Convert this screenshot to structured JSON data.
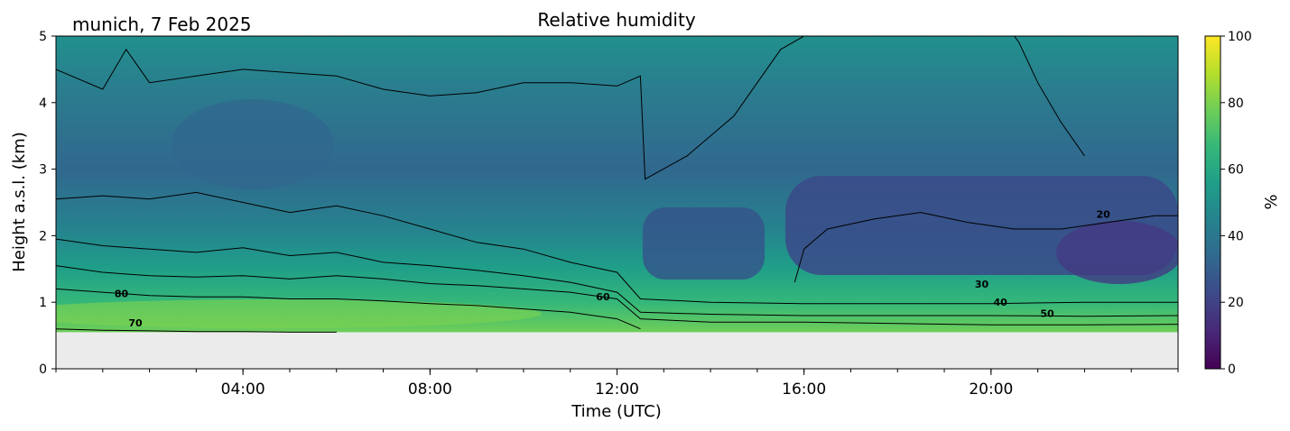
{
  "chart_data": {
    "type": "heatmap",
    "title": "Relative humidity",
    "subtitle": "munich, 7 Feb 2025",
    "xlabel": "Time (UTC)",
    "ylabel": "Height a.s.l. (km)",
    "xlim_hours": [
      0,
      24
    ],
    "ylim_km": [
      0,
      5
    ],
    "x_ticks": [
      "04:00",
      "08:00",
      "12:00",
      "16:00",
      "20:00"
    ],
    "x_tick_hours": [
      4,
      8,
      12,
      16,
      20
    ],
    "y_ticks": [
      0,
      1,
      2,
      3,
      4,
      5
    ],
    "data_floor_km": 0.55,
    "colorbar": {
      "label": "%",
      "min": 0,
      "max": 100,
      "ticks": [
        0,
        20,
        40,
        60,
        80,
        100
      ],
      "colormap": "viridis",
      "colors": [
        "#440154",
        "#482878",
        "#3e4989",
        "#31688e",
        "#26828e",
        "#1f9e89",
        "#35b779",
        "#6ece58",
        "#b5de2b",
        "#fde725"
      ]
    },
    "background_color": "#ebebeb",
    "contour_levels": [
      {
        "level": 80,
        "label": "80",
        "label_at": [
          1.4,
          1.08
        ]
      },
      {
        "level": 70,
        "label": "70",
        "label_at": [
          1.7,
          0.64
        ]
      },
      {
        "level": 60,
        "label": "60",
        "label_at": [
          11.7,
          1.03
        ]
      },
      {
        "level": 50,
        "label": "50",
        "label_at": [
          21.2,
          0.78
        ]
      },
      {
        "level": 40,
        "label": "40",
        "label_at": [
          20.2,
          0.95
        ]
      },
      {
        "level": 30,
        "label": "30",
        "label_at": [
          19.8,
          1.22
        ]
      },
      {
        "level": 20,
        "label": "20",
        "label_at": [
          22.4,
          2.27
        ]
      }
    ],
    "contours": [
      {
        "level": 70,
        "points": [
          [
            0,
            0.6
          ],
          [
            1,
            0.58
          ],
          [
            2,
            0.57
          ],
          [
            3,
            0.56
          ],
          [
            4,
            0.56
          ],
          [
            5,
            0.55
          ],
          [
            6,
            0.55
          ]
        ]
      },
      {
        "level": 60,
        "points": [
          [
            0,
            1.2
          ],
          [
            1,
            1.15
          ],
          [
            2,
            1.1
          ],
          [
            3,
            1.08
          ],
          [
            4,
            1.08
          ],
          [
            5,
            1.05
          ],
          [
            6,
            1.05
          ],
          [
            7,
            1.02
          ],
          [
            8,
            0.98
          ],
          [
            9,
            0.95
          ],
          [
            10,
            0.9
          ],
          [
            11,
            0.85
          ],
          [
            12,
            0.75
          ],
          [
            12.5,
            0.6
          ]
        ]
      },
      {
        "level": 50,
        "points": [
          [
            0,
            1.55
          ],
          [
            1,
            1.45
          ],
          [
            2,
            1.4
          ],
          [
            3,
            1.38
          ],
          [
            4,
            1.4
          ],
          [
            5,
            1.35
          ],
          [
            6,
            1.4
          ],
          [
            7,
            1.35
          ],
          [
            8,
            1.28
          ],
          [
            9,
            1.25
          ],
          [
            10,
            1.2
          ],
          [
            11,
            1.15
          ],
          [
            12,
            1.05
          ],
          [
            12.5,
            0.75
          ],
          [
            14,
            0.7
          ],
          [
            16,
            0.7
          ],
          [
            18,
            0.68
          ],
          [
            20,
            0.66
          ],
          [
            22,
            0.66
          ],
          [
            24,
            0.67
          ]
        ]
      },
      {
        "level": 40,
        "points": [
          [
            0,
            1.95
          ],
          [
            1,
            1.85
          ],
          [
            2,
            1.8
          ],
          [
            3,
            1.75
          ],
          [
            4,
            1.82
          ],
          [
            5,
            1.7
          ],
          [
            6,
            1.75
          ],
          [
            7,
            1.6
          ],
          [
            8,
            1.55
          ],
          [
            9,
            1.48
          ],
          [
            10,
            1.4
          ],
          [
            11,
            1.3
          ],
          [
            12,
            1.15
          ],
          [
            12.5,
            0.85
          ],
          [
            14,
            0.82
          ],
          [
            16,
            0.8
          ],
          [
            18,
            0.8
          ],
          [
            20,
            0.8
          ],
          [
            22,
            0.79
          ],
          [
            24,
            0.8
          ]
        ]
      },
      {
        "level": 30,
        "points": [
          [
            0,
            2.55
          ],
          [
            1,
            2.6
          ],
          [
            2,
            2.55
          ],
          [
            3,
            2.65
          ],
          [
            4,
            2.5
          ],
          [
            5,
            2.35
          ],
          [
            6,
            2.45
          ],
          [
            7,
            2.3
          ],
          [
            8,
            2.1
          ],
          [
            9,
            1.9
          ],
          [
            10,
            1.8
          ],
          [
            11,
            1.6
          ],
          [
            12,
            1.45
          ],
          [
            12.5,
            1.05
          ],
          [
            14,
            1.0
          ],
          [
            16,
            0.98
          ],
          [
            18,
            0.98
          ],
          [
            20,
            0.98
          ],
          [
            22,
            1.0
          ],
          [
            24,
            1.0
          ]
        ]
      },
      {
        "level": 30,
        "points": [
          [
            0,
            4.5
          ],
          [
            1,
            4.2
          ],
          [
            1.5,
            4.8
          ],
          [
            2,
            4.3
          ],
          [
            3,
            4.4
          ],
          [
            4,
            4.5
          ],
          [
            5,
            4.45
          ],
          [
            6,
            4.4
          ],
          [
            7,
            4.2
          ],
          [
            8,
            4.1
          ],
          [
            9,
            4.15
          ],
          [
            10,
            4.3
          ],
          [
            11,
            4.3
          ],
          [
            12,
            4.25
          ],
          [
            12.5,
            4.4
          ],
          [
            12.6,
            2.85
          ],
          [
            13.5,
            3.2
          ],
          [
            14.5,
            3.8
          ],
          [
            15,
            4.3
          ],
          [
            15.5,
            4.8
          ],
          [
            16,
            5.0
          ]
        ]
      },
      {
        "level": 20,
        "points": [
          [
            15.8,
            1.3
          ],
          [
            16,
            1.8
          ],
          [
            16.5,
            2.1
          ],
          [
            17.5,
            2.25
          ],
          [
            18.5,
            2.35
          ],
          [
            19.5,
            2.2
          ],
          [
            20.5,
            2.1
          ],
          [
            21.5,
            2.1
          ],
          [
            22.5,
            2.2
          ],
          [
            23.5,
            2.3
          ],
          [
            24,
            2.3
          ]
        ]
      },
      {
        "level": 30,
        "points": [
          [
            22,
            3.2
          ],
          [
            21.5,
            3.7
          ],
          [
            21,
            4.3
          ],
          [
            20.6,
            4.9
          ],
          [
            20.5,
            5.0
          ]
        ]
      }
    ]
  }
}
